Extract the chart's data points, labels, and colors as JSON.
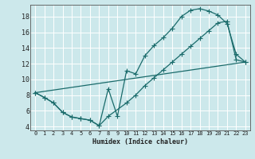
{
  "xlabel": "Humidex (Indice chaleur)",
  "bg_color": "#cce8eb",
  "grid_color": "#ffffff",
  "line_color": "#1a6b6b",
  "xlim": [
    -0.5,
    23.5
  ],
  "ylim": [
    3.5,
    19.5
  ],
  "xticks": [
    0,
    1,
    2,
    3,
    4,
    5,
    6,
    7,
    8,
    9,
    10,
    11,
    12,
    13,
    14,
    15,
    16,
    17,
    18,
    19,
    20,
    21,
    22,
    23
  ],
  "yticks": [
    4,
    6,
    8,
    10,
    12,
    14,
    16,
    18
  ],
  "line1_x": [
    0,
    1,
    2,
    3,
    4,
    5,
    6,
    7,
    8,
    9,
    10,
    11,
    12,
    13,
    14,
    15,
    16,
    17,
    18,
    19,
    20,
    21,
    22,
    23
  ],
  "line1_y": [
    8.3,
    7.7,
    7.0,
    5.8,
    5.2,
    5.0,
    4.8,
    4.1,
    8.8,
    5.3,
    11.1,
    10.7,
    13.0,
    14.3,
    15.3,
    16.5,
    18.0,
    18.8,
    19.0,
    18.7,
    18.2,
    17.1,
    13.2,
    12.2
  ],
  "line2_x": [
    0,
    1,
    2,
    3,
    4,
    5,
    6,
    7,
    8,
    10,
    11,
    12,
    13,
    14,
    15,
    16,
    17,
    18,
    19,
    20,
    21,
    22,
    23
  ],
  "line2_y": [
    8.3,
    7.7,
    7.0,
    5.8,
    5.2,
    5.0,
    4.8,
    4.1,
    5.3,
    7.0,
    8.0,
    9.2,
    10.2,
    11.2,
    12.2,
    13.2,
    14.2,
    15.2,
    16.2,
    17.2,
    17.4,
    12.5,
    12.2
  ],
  "line3_x": [
    0,
    23
  ],
  "line3_y": [
    8.3,
    12.2
  ],
  "marker": "+",
  "markersize": 4,
  "linewidth": 0.9,
  "tick_fontsize": 5,
  "xlabel_fontsize": 6,
  "spine_color": "#555555"
}
